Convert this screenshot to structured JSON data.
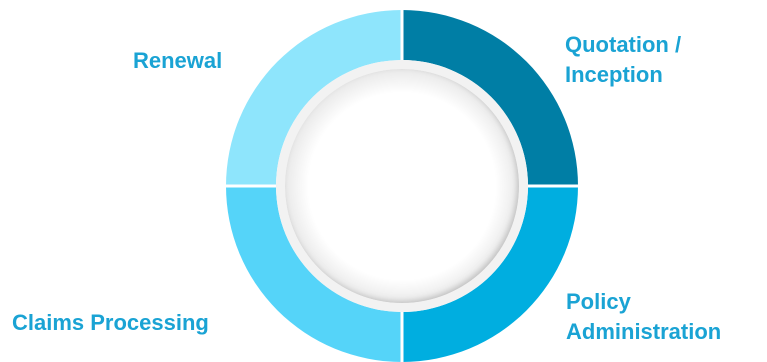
{
  "diagram": {
    "segments": [
      {
        "id": "quotation-inception",
        "label_lines": [
          "Quotation /",
          "Inception"
        ],
        "fill": "#007ea5",
        "text_color": "#1aa3d4"
      },
      {
        "id": "policy-administration",
        "label_lines": [
          "Policy",
          "Administration"
        ],
        "fill": "#00aee0",
        "text_color": "#1aa3d4"
      },
      {
        "id": "claims-processing",
        "label_lines": [
          "Claims Processing"
        ],
        "fill": "#55d4f9",
        "text_color": "#1aa3d4"
      },
      {
        "id": "renewal",
        "label_lines": [
          "Renewal"
        ],
        "fill": "#8ee5fc",
        "text_color": "#1aa3d4"
      }
    ],
    "inner_ring_color": "#f2f2f2",
    "divider_color": "#ffffff"
  }
}
